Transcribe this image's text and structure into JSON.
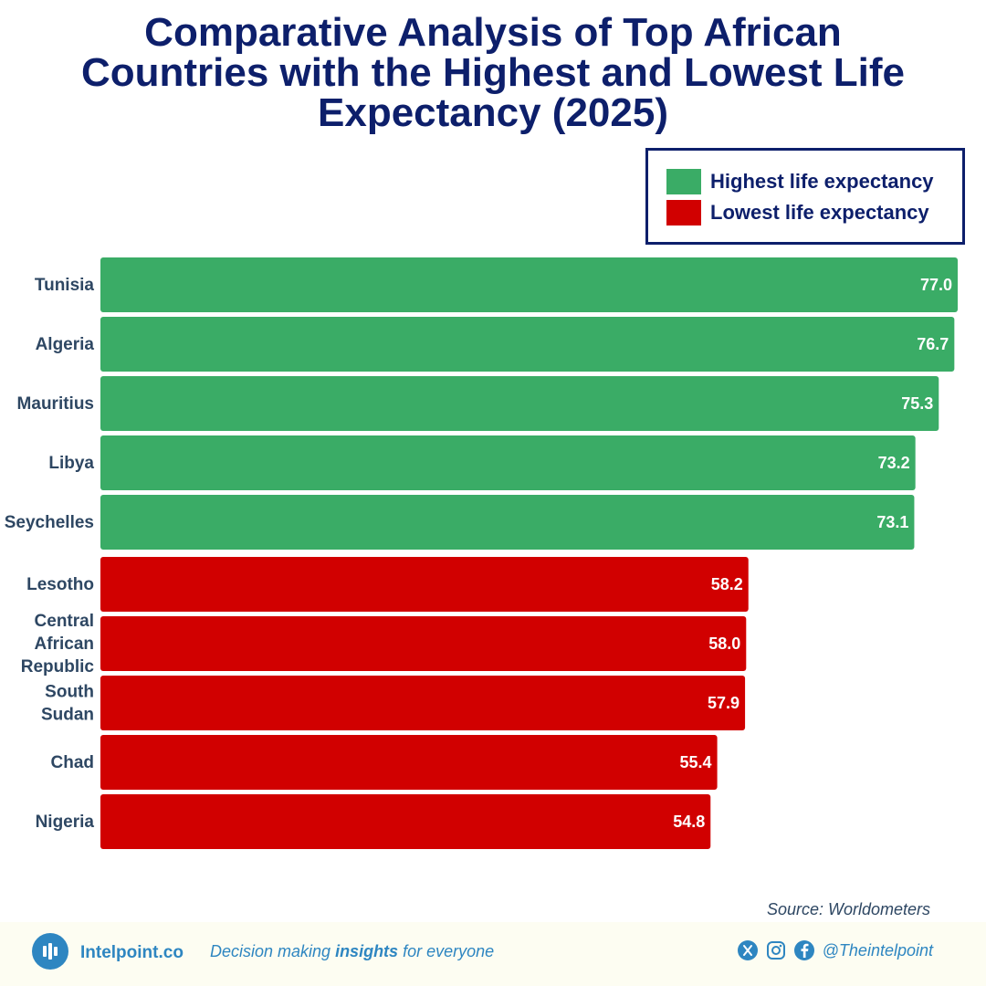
{
  "title_lines": [
    "Comparative Analysis of Top African",
    "Countries with the Highest and Lowest Life",
    "Expectancy (2025)"
  ],
  "legend": [
    {
      "label": "Highest life expectancy",
      "color": "#3aac66"
    },
    {
      "label": "Lowest life expectancy",
      "color": "#d10000"
    }
  ],
  "chart_data": {
    "type": "bar",
    "orientation": "horizontal",
    "title": "Comparative Analysis of Top African Countries with the Highest and Lowest Life Expectancy (2025)",
    "categories": [
      [
        "Tunisia"
      ],
      [
        "Algeria"
      ],
      [
        "Mauritius"
      ],
      [
        "Libya"
      ],
      [
        "Seychelles"
      ],
      [
        "Lesotho"
      ],
      [
        "Central",
        "African",
        "Republic"
      ],
      [
        "South",
        "Sudan"
      ],
      [
        "Chad"
      ],
      [
        "Nigeria"
      ]
    ],
    "values": [
      77.0,
      76.7,
      75.3,
      73.2,
      73.1,
      58.2,
      58.0,
      57.9,
      55.4,
      54.8
    ],
    "value_labels": [
      "77.0",
      "76.7",
      "75.3",
      "73.2",
      "73.1",
      "58.2",
      "58.0",
      "57.9",
      "55.4",
      "54.8"
    ],
    "groups": [
      "high",
      "high",
      "high",
      "high",
      "high",
      "low",
      "low",
      "low",
      "low",
      "low"
    ],
    "colors": {
      "high": "#3aac66",
      "low": "#d10000"
    },
    "xlim": [
      0,
      77
    ],
    "grid": false,
    "legend_position": "top-right"
  },
  "source": "Source: Worldometers",
  "footer": {
    "brand": "Intelpoint.co",
    "tagline_pre": "Decision making ",
    "tagline_bold": "insights",
    "tagline_post": " for everyone",
    "handle": "@Theintelpoint",
    "icons": [
      "x-logo-icon",
      "instagram-icon",
      "facebook-icon"
    ],
    "accent_color": "#2e86c1"
  }
}
